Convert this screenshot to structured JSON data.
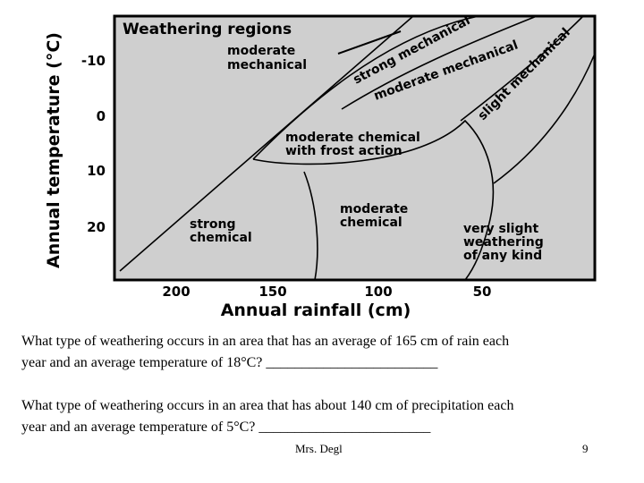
{
  "diagram": {
    "title": "Weathering regions",
    "y_axis_label": "Annual temperature (°C)",
    "x_axis_label": "Annual rainfall (cm)",
    "y_ticks": [
      "-10",
      "0",
      "10",
      "20"
    ],
    "x_ticks": [
      "200",
      "150",
      "100",
      "50"
    ],
    "regions": {
      "moderate_mechanical_line1": "moderate",
      "moderate_mechanical_line2": "mechanical",
      "strong_mechanical": "strong mechanical",
      "moderate_mechanical_band": "moderate mechanical",
      "slight_mechanical": "slight mechanical",
      "moderate_chemical_frost_line1": "moderate chemical",
      "moderate_chemical_frost_line2": "with frost action",
      "strong_chemical_line1": "strong",
      "strong_chemical_line2": "chemical",
      "moderate_chemical_line1": "moderate",
      "moderate_chemical_line2": "chemical",
      "very_slight_line1": "very slight",
      "very_slight_line2": "weathering",
      "very_slight_line3": "of any kind"
    }
  },
  "questions": {
    "q1_line1": "What type of weathering occurs in an area that has an average of 165 cm of rain each",
    "q1_line2": "year and an average temperature of 18°C? ________________________",
    "q2_line1": "What type of weathering occurs in an area that has about 140 cm of precipitation each",
    "q2_line2": "year and an average temperature of 5°C?  ________________________"
  },
  "footer": {
    "name": "Mrs. Degl",
    "page": "9"
  }
}
